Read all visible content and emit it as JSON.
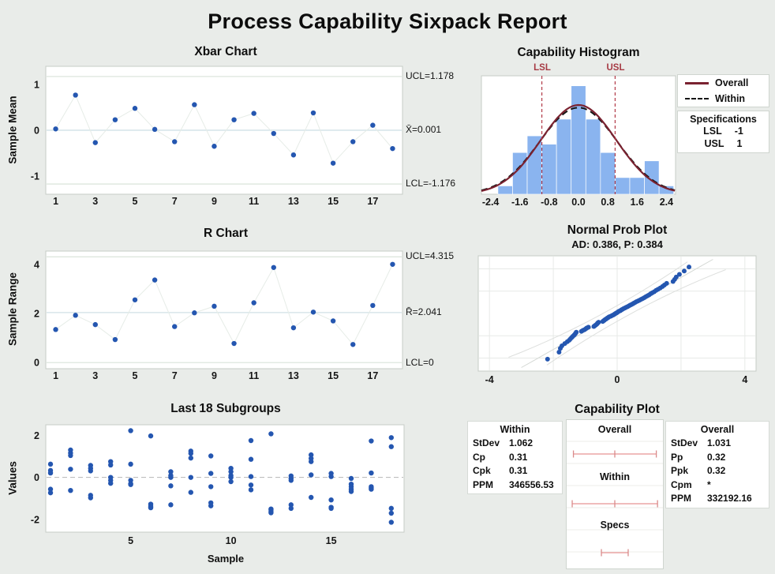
{
  "title": "Process Capability Sixpack Report",
  "colors": {
    "background": "#e9ece9",
    "point_blue": "#2456b0",
    "bar_blue": "#8ab4ef",
    "overall_red": "#7a2230",
    "within_black": "#151515",
    "spec_red": "#b23b48",
    "interval_pink": "#eba6a6",
    "interval_tick": "#d98b8b"
  },
  "chart_data": [
    {
      "type": "control-line",
      "title": "Xbar Chart",
      "ylabel": "Sample Mean",
      "ucl": 1.178,
      "center": 0.001,
      "lcl": -1.176,
      "ucl_label": "UCL=1.178",
      "center_label": "X̄=0.001",
      "lcl_label": "LCL=-1.176",
      "yticks": [
        1,
        0,
        -1
      ],
      "xticks": [
        1,
        3,
        5,
        7,
        9,
        11,
        13,
        15,
        17
      ],
      "ylim": [
        -1.4,
        1.4
      ],
      "values": [
        0.03,
        0.77,
        -0.27,
        0.23,
        0.48,
        0.02,
        -0.25,
        0.56,
        -0.35,
        0.23,
        0.37,
        -0.07,
        -0.54,
        0.38,
        -0.72,
        -0.25,
        0.11,
        -0.4
      ]
    },
    {
      "type": "histogram",
      "title": "Capability Histogram",
      "xticks": [
        "-2.4",
        "-1.6",
        "-0.8",
        "0.0",
        "0.8",
        "1.6",
        "2.4"
      ],
      "xtick_values": [
        -2.4,
        -1.6,
        -0.8,
        0,
        0.8,
        1.6,
        2.4
      ],
      "xlim": [
        -2.65,
        2.65
      ],
      "bin_width": 0.4,
      "bin_centers": [
        -2.0,
        -1.6,
        -1.2,
        -0.8,
        -0.4,
        0.0,
        0.4,
        0.8,
        1.2,
        1.6,
        2.0,
        2.4
      ],
      "counts": [
        1,
        5,
        7,
        6,
        9,
        13,
        9,
        5,
        2,
        2,
        4,
        1
      ],
      "ymax": 14.2,
      "lsl": -1,
      "usl": 1,
      "lsl_label": "LSL",
      "usl_label": "USL",
      "curves": {
        "mu": 0.001,
        "sigma_overall": 1.031,
        "sigma_within": 1.062,
        "peak": 10.7
      },
      "legend": [
        {
          "label": "Overall",
          "style": "solid"
        },
        {
          "label": "Within",
          "style": "dashed"
        }
      ],
      "specs_box": {
        "title": "Specifications",
        "rows": [
          [
            "LSL",
            "-1"
          ],
          [
            "USL",
            "1"
          ]
        ]
      }
    },
    {
      "type": "control-line",
      "title": "R Chart",
      "ylabel": "Sample Range",
      "ucl": 4.315,
      "center": 2.041,
      "lcl": 0,
      "ucl_label": "UCL=4.315",
      "center_label": "R̄=2.041",
      "lcl_label": "LCL=0",
      "yticks": [
        4,
        2,
        0
      ],
      "xticks": [
        1,
        3,
        5,
        7,
        9,
        11,
        13,
        15,
        17
      ],
      "ylim": [
        -0.25,
        4.55
      ],
      "values": [
        1.35,
        1.93,
        1.55,
        0.94,
        2.56,
        3.37,
        1.47,
        2.03,
        2.3,
        0.78,
        2.44,
        3.88,
        1.42,
        2.06,
        1.7,
        0.74,
        2.33,
        4.01
      ]
    },
    {
      "type": "scatter",
      "title": "Normal Prob Plot",
      "subtitle": "AD: 0.386, P: 0.384",
      "xticks": [
        -4,
        0,
        4
      ],
      "xlim": [
        -4.35,
        4.35
      ],
      "zlim": [
        -3.1,
        3.1
      ],
      "grid_x": [
        -4,
        -2,
        0,
        2,
        4
      ],
      "grid_z": [
        -2.4,
        -1.2,
        1.2,
        2.4
      ],
      "fit_sigma": 1.031,
      "points": [
        [
          -2.18,
          -2.46
        ],
        [
          -1.82,
          -2.08
        ],
        [
          -1.78,
          -1.88
        ],
        [
          -1.73,
          -1.74
        ],
        [
          -1.64,
          -1.62
        ],
        [
          -1.56,
          -1.52
        ],
        [
          -1.5,
          -1.44
        ],
        [
          -1.46,
          -1.36
        ],
        [
          -1.42,
          -1.29
        ],
        [
          -1.39,
          -1.23
        ],
        [
          -1.35,
          -1.17
        ],
        [
          -1.32,
          -1.11
        ],
        [
          -1.3,
          -1.06
        ],
        [
          -1.28,
          -1.01
        ],
        [
          -1.12,
          -0.96
        ],
        [
          -1.07,
          -0.91
        ],
        [
          -1.02,
          -0.87
        ],
        [
          -0.98,
          -0.82
        ],
        [
          -0.95,
          -0.78
        ],
        [
          -0.9,
          -0.74
        ],
        [
          -0.73,
          -0.7
        ],
        [
          -0.7,
          -0.66
        ],
        [
          -0.67,
          -0.62
        ],
        [
          -0.64,
          -0.58
        ],
        [
          -0.62,
          -0.54
        ],
        [
          -0.6,
          -0.5
        ],
        [
          -0.58,
          -0.47
        ],
        [
          -0.45,
          -0.43
        ],
        [
          -0.42,
          -0.39
        ],
        [
          -0.4,
          -0.36
        ],
        [
          -0.37,
          -0.32
        ],
        [
          -0.34,
          -0.29
        ],
        [
          -0.31,
          -0.25
        ],
        [
          -0.28,
          -0.22
        ],
        [
          -0.25,
          -0.18
        ],
        [
          -0.2,
          -0.15
        ],
        [
          -0.16,
          -0.11
        ],
        [
          -0.12,
          -0.08
        ],
        [
          -0.09,
          -0.05
        ],
        [
          -0.06,
          -0.01
        ],
        [
          -0.03,
          0.02
        ],
        [
          0.0,
          0.05
        ],
        [
          0.03,
          0.09
        ],
        [
          0.06,
          0.12
        ],
        [
          0.1,
          0.15
        ],
        [
          0.13,
          0.19
        ],
        [
          0.16,
          0.22
        ],
        [
          0.2,
          0.26
        ],
        [
          0.24,
          0.29
        ],
        [
          0.28,
          0.33
        ],
        [
          0.32,
          0.36
        ],
        [
          0.36,
          0.4
        ],
        [
          0.4,
          0.44
        ],
        [
          0.44,
          0.47
        ],
        [
          0.48,
          0.51
        ],
        [
          0.52,
          0.55
        ],
        [
          0.56,
          0.59
        ],
        [
          0.6,
          0.63
        ],
        [
          0.65,
          0.67
        ],
        [
          0.7,
          0.71
        ],
        [
          0.75,
          0.76
        ],
        [
          0.8,
          0.8
        ],
        [
          0.85,
          0.85
        ],
        [
          0.9,
          0.9
        ],
        [
          0.95,
          0.95
        ],
        [
          1.0,
          1.0
        ],
        [
          1.05,
          1.06
        ],
        [
          1.1,
          1.11
        ],
        [
          1.16,
          1.17
        ],
        [
          1.22,
          1.24
        ],
        [
          1.28,
          1.3
        ],
        [
          1.35,
          1.37
        ],
        [
          1.42,
          1.45
        ],
        [
          1.48,
          1.53
        ],
        [
          1.55,
          1.62
        ],
        [
          1.75,
          1.72
        ],
        [
          1.8,
          1.83
        ],
        [
          1.85,
          1.96
        ],
        [
          1.95,
          2.1
        ],
        [
          2.1,
          2.28
        ],
        [
          2.25,
          2.5
        ]
      ]
    },
    {
      "type": "scatter",
      "title": "Last 18 Subgroups",
      "ylabel": "Values",
      "xlabel": "Sample",
      "yticks": [
        2,
        0,
        -2
      ],
      "xticks": [
        5,
        10,
        15
      ],
      "ylim": [
        -2.6,
        2.5
      ],
      "center": 0.001,
      "groups": [
        [
          0.63,
          0.33,
          0.21,
          -0.56,
          -0.73
        ],
        [
          1.3,
          1.16,
          1.04,
          0.39,
          -0.62
        ],
        [
          0.57,
          0.43,
          0.31,
          -0.85,
          -0.97
        ],
        [
          0.75,
          0.59,
          0.0,
          -0.14,
          -0.28
        ],
        [
          2.22,
          0.63,
          -0.14,
          -0.3,
          -0.34
        ],
        [
          1.97,
          -1.27,
          -1.32,
          -1.4,
          -1.44
        ],
        [
          0.27,
          0.09,
          0.0,
          -0.4,
          -1.3
        ],
        [
          1.25,
          1.14,
          0.92,
          0.0,
          -0.71
        ],
        [
          1.02,
          0.19,
          -0.44,
          -1.21,
          -1.35
        ],
        [
          0.43,
          0.27,
          0.09,
          0.0,
          -0.2
        ],
        [
          1.75,
          0.86,
          0.04,
          -0.36,
          -0.59
        ],
        [
          2.07,
          -1.5,
          -1.54,
          -1.62,
          -1.68
        ],
        [
          0.07,
          -0.05,
          -0.14,
          -1.3,
          -1.47
        ],
        [
          1.07,
          0.9,
          0.75,
          0.12,
          -0.95
        ],
        [
          0.19,
          0.04,
          -1.07,
          -1.42,
          -1.47
        ],
        [
          -0.05,
          -0.32,
          -0.44,
          -0.56,
          -0.67
        ],
        [
          1.73,
          0.21,
          -0.44,
          -0.5,
          -0.56
        ],
        [
          1.89,
          1.46,
          -1.47,
          -1.7,
          -2.13
        ]
      ]
    },
    {
      "type": "interval",
      "title": "Capability Plot",
      "within_table": {
        "title": "Within",
        "rows": [
          [
            "StDev",
            "1.062"
          ],
          [
            "Cp",
            "0.31"
          ],
          [
            "Cpk",
            "0.31"
          ],
          [
            "PPM",
            "346556.53"
          ]
        ]
      },
      "overall_table": {
        "title": "Overall",
        "rows": [
          [
            "StDev",
            "1.031"
          ],
          [
            "Pp",
            "0.32"
          ],
          [
            "Ppk",
            "0.32"
          ],
          [
            "Cpm",
            "*"
          ],
          [
            "PPM",
            "332192.16"
          ]
        ]
      },
      "scale": [
        -3.3,
        3.3
      ],
      "intervals": [
        {
          "label": "Overall",
          "lo": -3.09,
          "hi": 3.1,
          "marks": [
            -3.09,
            0.0,
            3.1
          ]
        },
        {
          "label": "Within",
          "lo": -3.18,
          "hi": 3.19,
          "marks": [
            -3.18,
            0.0,
            3.19
          ]
        },
        {
          "label": "Specs",
          "lo": -1,
          "hi": 1,
          "marks": [
            -1,
            1
          ]
        }
      ]
    }
  ]
}
